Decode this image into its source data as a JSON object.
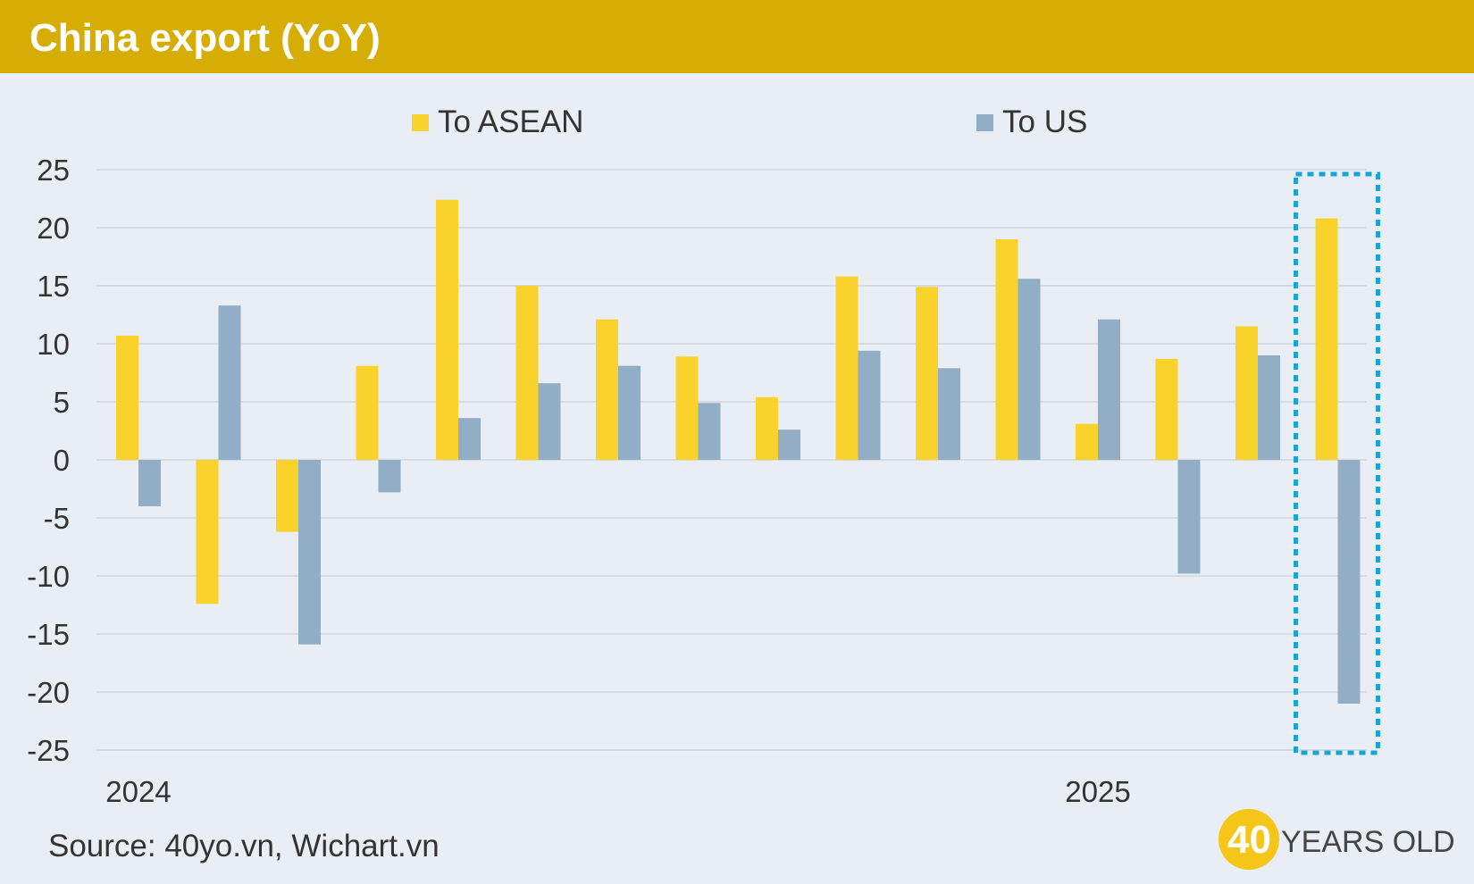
{
  "header": {
    "title": "China export (YoY)"
  },
  "source": "Source: 40yo.vn, Wichart.vn",
  "logo": {
    "number": "40",
    "text": "YEARS OLD"
  },
  "colors": {
    "asean": "#f9d22b",
    "us": "#91aec6",
    "highlight": "#1aa3d6",
    "title_bar": "#d6ad05"
  },
  "chart_data": {
    "type": "bar",
    "title": "China export (YoY)",
    "series": [
      {
        "name": "To ASEAN",
        "values": [
          10.7,
          -12.4,
          -6.2,
          8.1,
          22.4,
          15.0,
          12.1,
          8.9,
          5.4,
          15.8,
          14.9,
          19.0,
          3.1,
          8.7,
          11.5,
          20.8
        ]
      },
      {
        "name": "To US",
        "values": [
          -4.0,
          13.3,
          -15.9,
          -2.8,
          3.6,
          6.6,
          8.1,
          4.9,
          2.6,
          9.4,
          7.9,
          15.6,
          12.1,
          -9.8,
          9.0,
          -21.0
        ]
      }
    ],
    "x_labels": [
      {
        "index": 0,
        "text": "2024"
      },
      {
        "index": 12,
        "text": "2025"
      }
    ],
    "ylim": [
      -25,
      25
    ],
    "yticks": [
      25,
      20,
      15,
      10,
      5,
      0,
      -5,
      -10,
      -15,
      -20,
      -25
    ],
    "grid": true,
    "legend_position": "top",
    "highlight_index": 15
  }
}
